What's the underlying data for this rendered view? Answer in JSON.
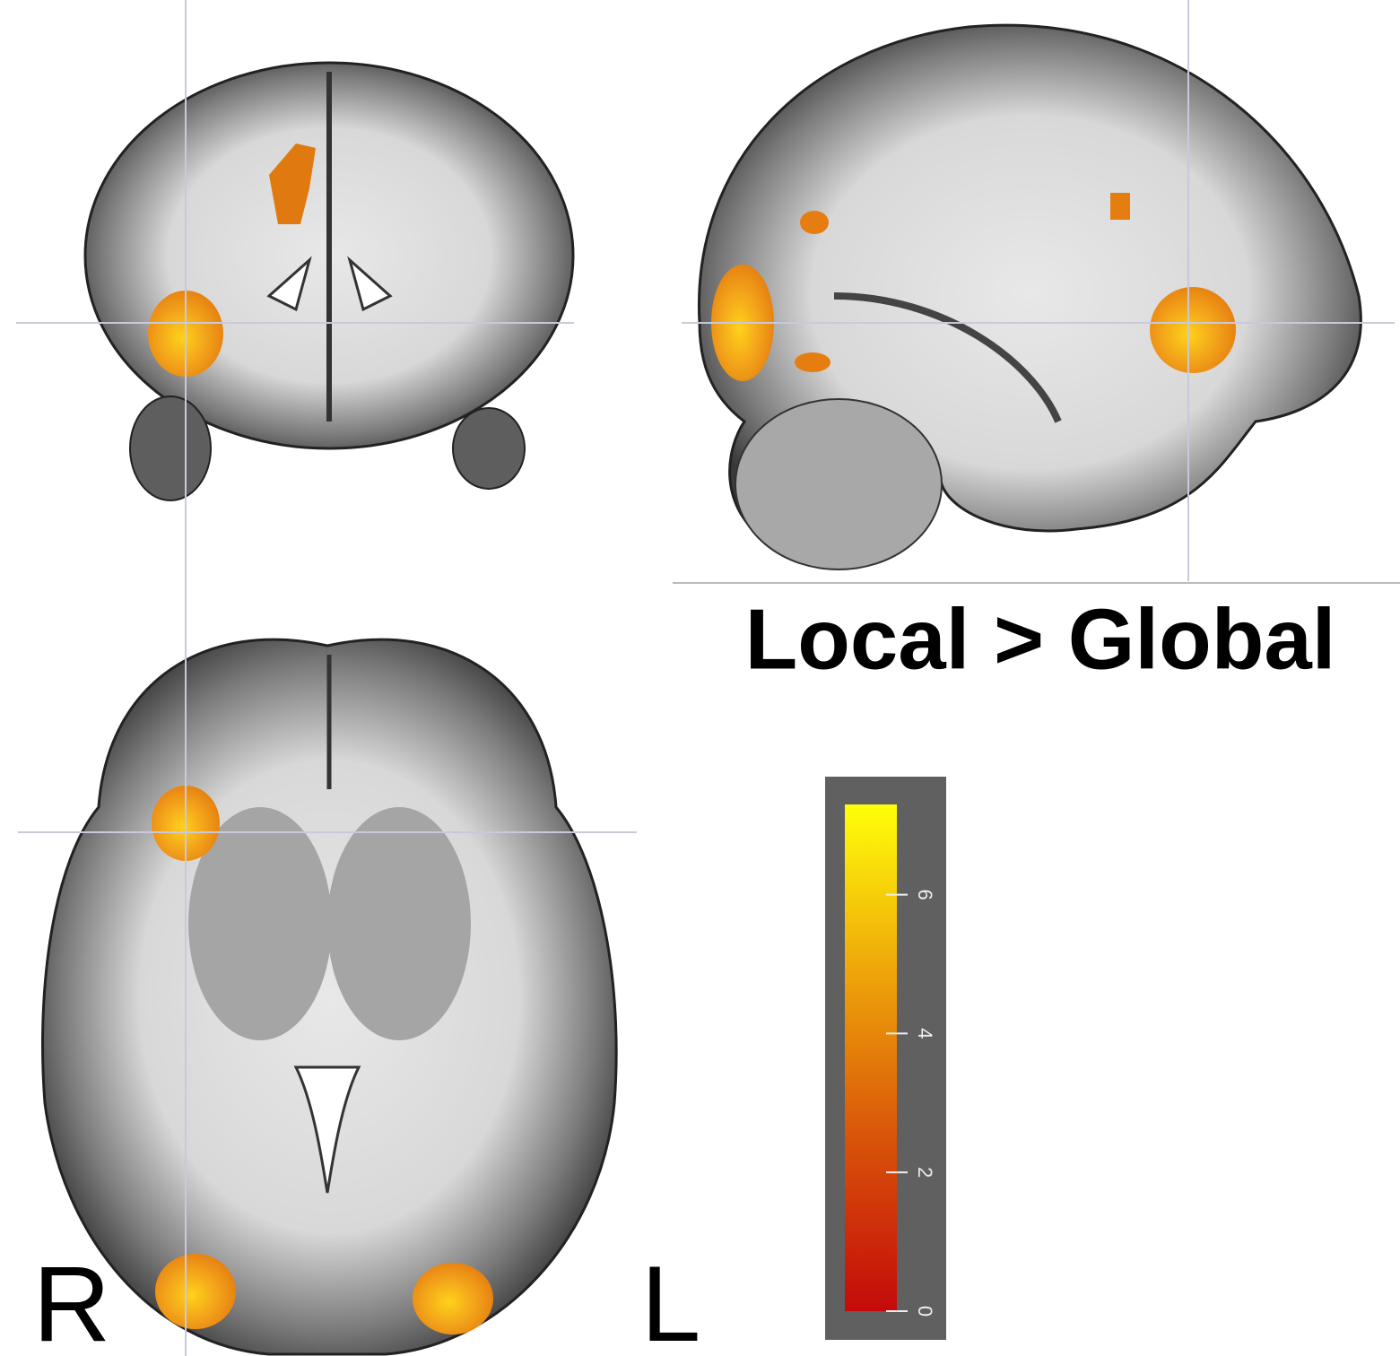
{
  "title": "Local > Global",
  "orientation_labels": {
    "right": "R",
    "left": "L"
  },
  "colorbar": {
    "lim": [
      0,
      7.3
    ],
    "ticks": [
      0,
      2,
      4,
      6
    ]
  }
}
